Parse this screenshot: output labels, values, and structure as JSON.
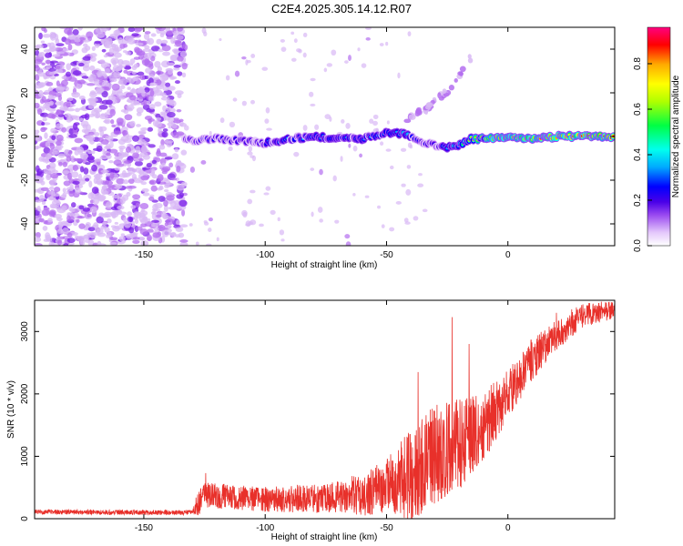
{
  "figure_title": "C2E4.2025.305.14.12.R07",
  "colors": {
    "line": "#e8302a",
    "background": "#ffffff",
    "scatter_sparse": "#d8b8f5",
    "scatter_mid": "#b46ef0",
    "scatter_dense": "#7a1fe8"
  },
  "chart_data": [
    {
      "type": "heatmap",
      "title": "C2E4.2025.305.14.12.R07",
      "xlabel": "Height of straight line (km)",
      "ylabel": "Frequency (Hz)",
      "xlim": [
        -195,
        44
      ],
      "ylim": [
        -50,
        50
      ],
      "xticks": [
        -150,
        -100,
        -50,
        0
      ],
      "yticks": [
        -40,
        -20,
        0,
        20,
        40
      ],
      "colorbar": {
        "label": "Normalized spectral amplitude",
        "range": [
          0.0,
          0.96
        ],
        "ticks": [
          0.0,
          0.2,
          0.4,
          0.6,
          0.8
        ],
        "colormap": [
          "#ffffff",
          "#e4c8fb",
          "#9a4af0",
          "#4a00e8",
          "#0000ff",
          "#00aaff",
          "#00ffee",
          "#00ff44",
          "#b0ff00",
          "#ffff00",
          "#ffaa00",
          "#ff0000",
          "#ff0080"
        ]
      },
      "noise_region_x": [
        -195,
        -133
      ],
      "ridge": {
        "x": [
          -133,
          -120,
          -110,
          -100,
          -90,
          -80,
          -70,
          -60,
          -50,
          -42,
          -35,
          -30,
          -25,
          -20,
          -15,
          -10,
          -5,
          0,
          10,
          20,
          30,
          44
        ],
        "y": [
          -2,
          -1,
          -2,
          -3,
          -1,
          0,
          -1,
          -1,
          2,
          1,
          -3,
          -4,
          -5,
          -4,
          -1,
          -1,
          -1,
          0,
          -1,
          0,
          0,
          0
        ],
        "amplitude": [
          0.3,
          0.35,
          0.35,
          0.4,
          0.4,
          0.45,
          0.45,
          0.45,
          0.45,
          0.5,
          0.35,
          0.35,
          0.45,
          0.55,
          0.75,
          0.8,
          0.85,
          0.9,
          0.9,
          0.95,
          0.95,
          0.95
        ]
      },
      "harmonic_track": {
        "x": [
          -42,
          -35,
          -30,
          -25,
          -20,
          -15
        ],
        "y": [
          8,
          12,
          16,
          21,
          28,
          37
        ]
      }
    },
    {
      "type": "line",
      "xlabel": "Height of straight line (km)",
      "ylabel": "SNR (10 * v/v)",
      "xlim": [
        -195,
        44
      ],
      "ylim": [
        0,
        3500
      ],
      "xticks": [
        -150,
        -100,
        -50,
        0
      ],
      "yticks": [
        0,
        1000,
        2000,
        3000
      ],
      "baseline": {
        "x": [
          -195,
          -150,
          -130,
          -125,
          -100,
          -75,
          -60,
          -50,
          -40,
          -35,
          -30,
          -25,
          -20,
          -15,
          -10,
          -5,
          0,
          5,
          10,
          20,
          30,
          44
        ],
        "y": [
          110,
          100,
          100,
          380,
          310,
          330,
          400,
          520,
          690,
          880,
          1050,
          1110,
          1170,
          1320,
          1480,
          1720,
          2000,
          2270,
          2550,
          2950,
          3250,
          3360
        ]
      },
      "noise_amplitude": {
        "x": [
          -195,
          -130,
          -128,
          -100,
          -70,
          -50,
          -40,
          -30,
          -20,
          -15,
          0,
          10,
          20,
          44
        ],
        "y": [
          40,
          40,
          200,
          200,
          250,
          450,
          750,
          800,
          750,
          650,
          400,
          350,
          250,
          150
        ]
      },
      "peaks": [
        {
          "x": -124.5,
          "y": 730
        },
        {
          "x": -23,
          "y": 3230
        },
        {
          "x": -16,
          "y": 2800
        },
        {
          "x": -37,
          "y": 2350
        },
        {
          "x": 20,
          "y": 3300
        }
      ]
    }
  ]
}
